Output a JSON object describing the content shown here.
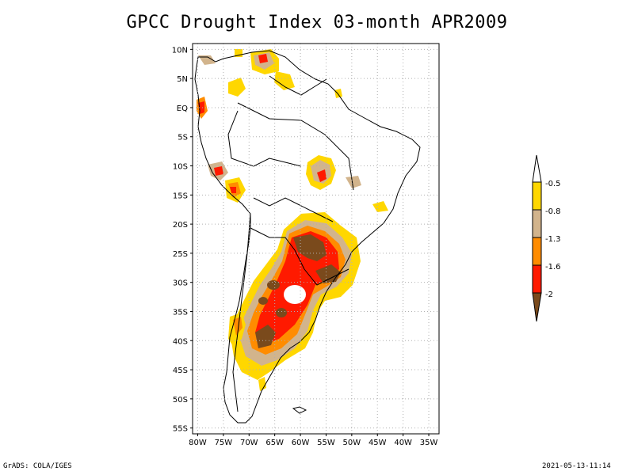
{
  "title": "GPCC Drought Index 03-month APR2009",
  "footer": {
    "left": "GrADS: COLA/IGES",
    "right": "2021-05-13-11:14"
  },
  "axes": {
    "lon_ticks": [
      "80W",
      "75W",
      "70W",
      "65W",
      "60W",
      "55W",
      "50W",
      "45W",
      "40W",
      "35W"
    ],
    "lat_ticks": [
      "10N",
      "5N",
      "EQ",
      "5S",
      "10S",
      "15S",
      "20S",
      "25S",
      "30S",
      "35S",
      "40S",
      "45S",
      "50S",
      "55S"
    ],
    "lon_range": [
      -81,
      -33
    ],
    "lat_range": [
      11,
      -56
    ],
    "grid": true
  },
  "legend": {
    "labels": [
      "-0.5",
      "-0.8",
      "-1.3",
      "-1.6",
      "-2"
    ],
    "colors": {
      "above": "#ffffff",
      "c1": "#ffd700",
      "c2": "#d2b48c",
      "c3": "#ff8c00",
      "c4": "#ff1a00",
      "c5": "#7a4a1c"
    }
  },
  "palette": {
    "yellow": "#ffd700",
    "tan": "#d2b48c",
    "orange": "#ff8c00",
    "red": "#ff1a00",
    "brown": "#7a4a1c",
    "land_outline": "#000000",
    "grid": "#b0b0b0"
  }
}
